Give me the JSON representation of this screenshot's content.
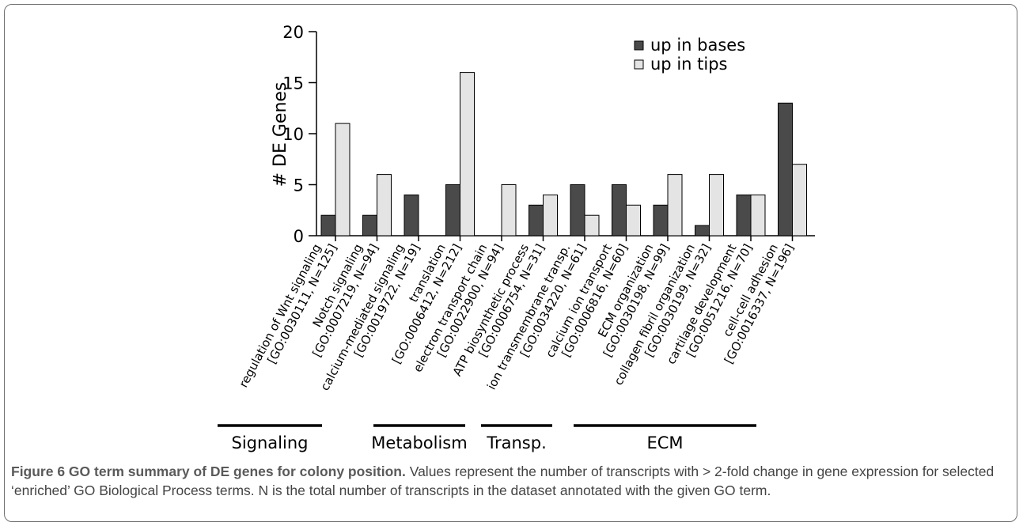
{
  "chart_data": {
    "type": "bar",
    "ylabel": "# DE Genes",
    "ylim": [
      0,
      20
    ],
    "yticks": [
      0,
      5,
      10,
      15,
      20
    ],
    "categories": [
      {
        "label": "regulation of Wnt signaling",
        "id": "[GO:0030111, N=125]"
      },
      {
        "label": "Notch signaling",
        "id": "[GO:0007219, N=94]"
      },
      {
        "label": "calcium-mediated signaling",
        "id": "[GO:0019722, N=19]"
      },
      {
        "label": "translation",
        "id": "[GO:0006412, N=212]"
      },
      {
        "label": "electron transport chain",
        "id": "[GO:0022900, N=94]"
      },
      {
        "label": "ATP biosynthetic process",
        "id": "[GO:0006754, N=31]"
      },
      {
        "label": "ion transmembrane transp.",
        "id": "[GO:0034220, N=61]"
      },
      {
        "label": "calcium ion transport",
        "id": "[GO:0006816, N=60]"
      },
      {
        "label": "ECM organization",
        "id": "[GO:0030198, N=99]"
      },
      {
        "label": "collagen fibril organization",
        "id": "[GO:0030199, N=32]"
      },
      {
        "label": "cartilage development",
        "id": "[GO:0051216, N=70]"
      },
      {
        "label": "cell-cell adhesion",
        "id": "[GO:0016337, N=196]"
      }
    ],
    "series": [
      {
        "name": "up in bases",
        "color": "#4a4a4a",
        "values": [
          2,
          2,
          4,
          5,
          0,
          3,
          5,
          5,
          3,
          1,
          4,
          13
        ]
      },
      {
        "name": "up in tips",
        "color": "#e4e4e4",
        "values": [
          11,
          6,
          0,
          16,
          5,
          4,
          2,
          3,
          6,
          6,
          4,
          7
        ]
      }
    ],
    "legend_position": "top-right",
    "groups": [
      {
        "label": "Signaling",
        "from": 0,
        "to": 2
      },
      {
        "label": "Metabolism",
        "from": 3,
        "to": 4
      },
      {
        "label": "Transp.",
        "from": 5,
        "to": 6
      },
      {
        "label": "ECM",
        "from": 7,
        "to": 11
      }
    ]
  },
  "caption": {
    "bold": "Figure 6 GO term summary of DE genes for colony position.",
    "text": " Values represent the number of transcripts with > 2-fold change in gene expression for selected ‘enriched’ GO Biological Process terms. N is the total number of transcripts in the dataset annotated with the given GO term."
  }
}
